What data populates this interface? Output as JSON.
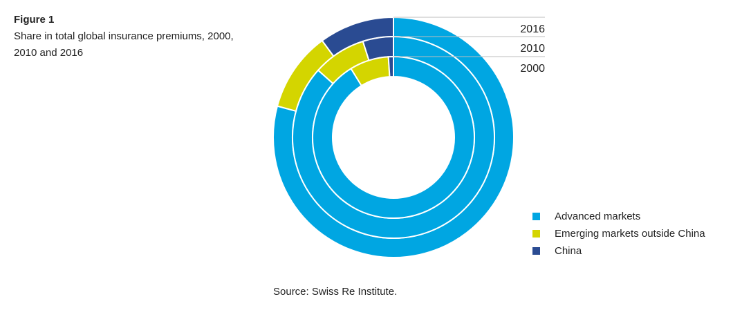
{
  "figure": {
    "label": "Figure 1",
    "title": "Share in total global insurance premiums, 2000, 2010 and 2016"
  },
  "chart_data": {
    "type": "pie",
    "subtype": "nested-donut",
    "categories": [
      "Advanced markets",
      "Emerging markets outside China",
      "China"
    ],
    "colors": [
      "#00a6e2",
      "#d4d500",
      "#2a4b92"
    ],
    "series": [
      {
        "name": "2016",
        "values": [
          79.2,
          10.7,
          10.1
        ]
      },
      {
        "name": "2010",
        "values": [
          86.6,
          8.5,
          4.9
        ]
      },
      {
        "name": "2000",
        "values": [
          91.2,
          7.8,
          1.0
        ]
      }
    ],
    "legend": "bottom-right"
  },
  "legend": {
    "items": [
      {
        "label": "Advanced markets",
        "color": "#00a6e2"
      },
      {
        "label": "Emerging markets outside China",
        "color": "#d4d500"
      },
      {
        "label": "China",
        "color": "#2a4b92"
      }
    ]
  },
  "source": "Source: Swiss Re Institute."
}
